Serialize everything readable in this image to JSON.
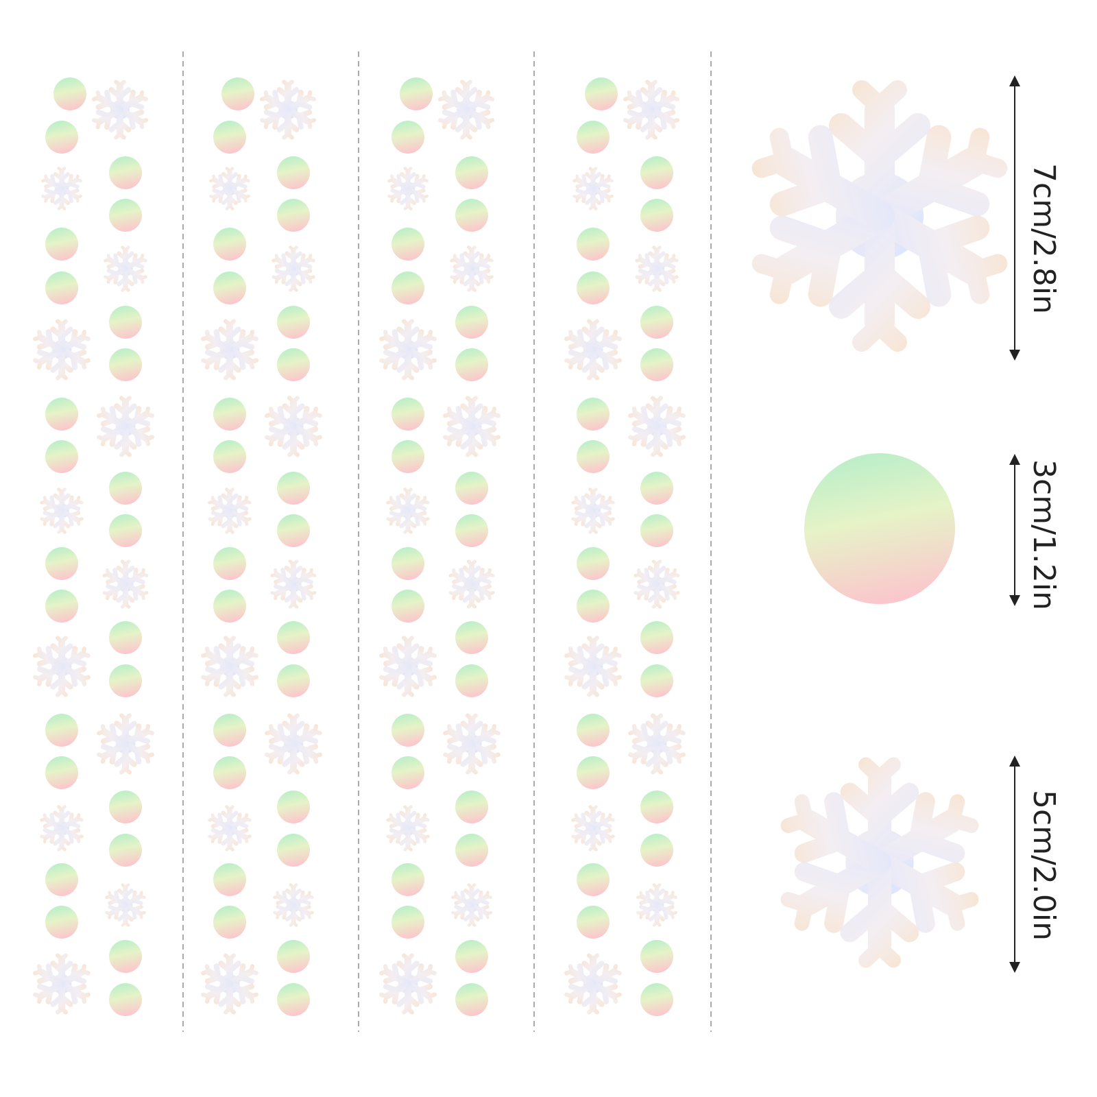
{
  "labels": [
    "7cm/2.8in",
    "3cm/1.2in",
    "5cm/2.0in"
  ]
}
